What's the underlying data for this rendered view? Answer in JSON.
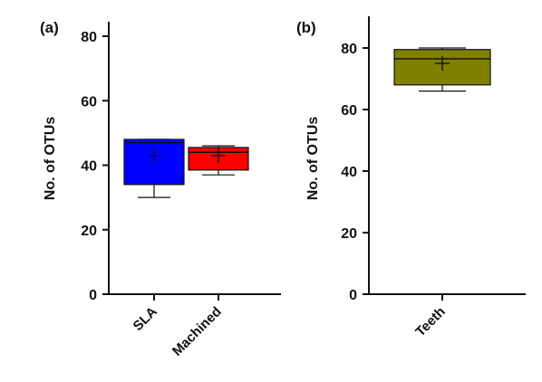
{
  "chart_data": [
    {
      "type": "box",
      "panel_label": "(a)",
      "ylabel": "No. of OTUs",
      "ylim": [
        0,
        85
      ],
      "yticks": [
        0,
        20,
        40,
        60,
        80
      ],
      "categories": [
        "SLA",
        "Machined"
      ],
      "boxes": [
        {
          "category": "SLA",
          "color": "#0000ff",
          "whisker_low": 30,
          "q1": 34,
          "median": 47,
          "q3": 48,
          "whisker_high": 48,
          "mean": 43
        },
        {
          "category": "Machined",
          "color": "#ff0000",
          "whisker_low": 37,
          "q1": 38.5,
          "median": 44,
          "q3": 45.5,
          "whisker_high": 46,
          "mean": 43
        }
      ]
    },
    {
      "type": "box",
      "panel_label": "(b)",
      "ylabel": "No. of OTUs",
      "ylim": [
        0,
        90
      ],
      "yticks": [
        0,
        20,
        40,
        60,
        80
      ],
      "categories": [
        "Teeth"
      ],
      "boxes": [
        {
          "category": "Teeth",
          "color": "#808000",
          "whisker_low": 66,
          "q1": 68,
          "median": 76.5,
          "q3": 79.5,
          "whisker_high": 80,
          "mean": 75
        }
      ]
    }
  ]
}
